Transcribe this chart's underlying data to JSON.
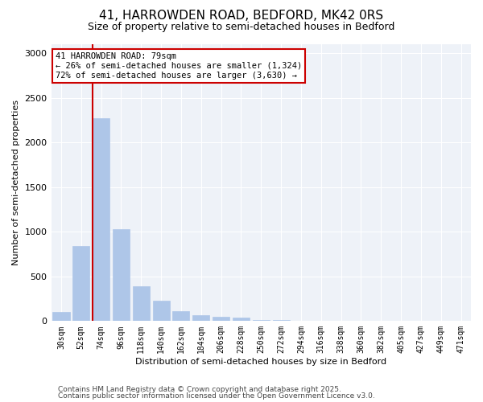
{
  "title": "41, HARROWDEN ROAD, BEDFORD, MK42 0RS",
  "subtitle": "Size of property relative to semi-detached houses in Bedford",
  "xlabel": "Distribution of semi-detached houses by size in Bedford",
  "ylabel": "Number of semi-detached properties",
  "categories": [
    "30sqm",
    "52sqm",
    "74sqm",
    "96sqm",
    "118sqm",
    "140sqm",
    "162sqm",
    "184sqm",
    "206sqm",
    "228sqm",
    "250sqm",
    "272sqm",
    "294sqm",
    "316sqm",
    "338sqm",
    "360sqm",
    "382sqm",
    "405sqm",
    "427sqm",
    "449sqm",
    "471sqm"
  ],
  "values": [
    100,
    840,
    2270,
    1030,
    390,
    230,
    110,
    65,
    50,
    35,
    15,
    8,
    5,
    3,
    2,
    1,
    1,
    0,
    0,
    0,
    0
  ],
  "bar_color": "#aec6e8",
  "bar_edgecolor": "#aec6e8",
  "vline_color": "#cc0000",
  "annotation_title": "41 HARROWDEN ROAD: 79sqm",
  "annotation_line1": "← 26% of semi-detached houses are smaller (1,324)",
  "annotation_line2": "72% of semi-detached houses are larger (3,630) →",
  "annotation_box_color": "#cc0000",
  "ylim": [
    0,
    3100
  ],
  "yticks": [
    0,
    500,
    1000,
    1500,
    2000,
    2500,
    3000
  ],
  "footnote1": "Contains HM Land Registry data © Crown copyright and database right 2025.",
  "footnote2": "Contains public sector information licensed under the Open Government Licence v3.0.",
  "plot_background": "#eef2f8",
  "title_fontsize": 11,
  "subtitle_fontsize": 9,
  "annotation_fontsize": 7.5,
  "footnote_fontsize": 6.5,
  "ylabel_fontsize": 8,
  "xlabel_fontsize": 8,
  "ytick_fontsize": 8,
  "xtick_fontsize": 7
}
